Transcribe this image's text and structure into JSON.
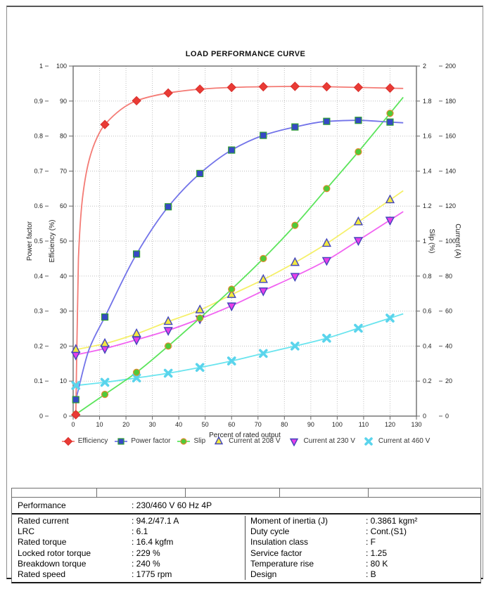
{
  "chart_data": {
    "type": "line",
    "title": "LOAD PERFORMANCE CURVE",
    "grid": true,
    "legend_position": "bottom",
    "curve_end_x": 125,
    "x_axis": {
      "title": "Percent of rated output",
      "min": 0,
      "max": 130,
      "step": 10,
      "ticks": [
        "0",
        "10",
        "20",
        "30",
        "40",
        "50",
        "60",
        "70",
        "80",
        "90",
        "100",
        "110",
        "120",
        "130"
      ]
    },
    "axes": {
      "power_factor": {
        "title": "Power factor",
        "min": 0,
        "max": 1,
        "step": 0.1,
        "side": "left-outer",
        "ticks": [
          "0",
          "0.1",
          "0.2",
          "0.3",
          "0.4",
          "0.5",
          "0.6",
          "0.7",
          "0.8",
          "0.9",
          "1"
        ]
      },
      "efficiency": {
        "title": "Efficiency (%)",
        "min": 0,
        "max": 100,
        "step": 10,
        "side": "left-inner",
        "ticks": [
          "0",
          "10",
          "20",
          "30",
          "40",
          "50",
          "60",
          "70",
          "80",
          "90",
          "100"
        ]
      },
      "slip": {
        "title": "Slip (%)",
        "min": 0,
        "max": 2,
        "step": 0.2,
        "side": "right-inner",
        "ticks": [
          "0",
          "0.2",
          "0.4",
          "0.6",
          "0.8",
          "1",
          "1.2",
          "1.4",
          "1.6",
          "1.8",
          "2"
        ]
      },
      "current": {
        "title": "Current (A)",
        "min": 0,
        "max": 200,
        "step": 20,
        "side": "right-outer",
        "ticks": [
          "0",
          "20",
          "40",
          "60",
          "80",
          "100",
          "120",
          "140",
          "160",
          "180",
          "200"
        ]
      }
    },
    "x": [
      1,
      12,
      24,
      36,
      48,
      60,
      72,
      84,
      96,
      108,
      120
    ],
    "series": [
      {
        "name": "Efficiency",
        "axis": "efficiency",
        "marker": "diamond",
        "line_color": "#f47b75",
        "marker_fill": "#e93b35",
        "marker_stroke": "#d92f2c",
        "legend_line": true,
        "values": [
          0.4,
          83.3,
          90.1,
          92.3,
          93.4,
          93.9,
          94.1,
          94.2,
          94.1,
          93.9,
          93.7
        ],
        "curve_hints": [
          [
            2,
            45
          ],
          [
            3.5,
            62
          ],
          [
            6,
            73
          ],
          [
            9,
            79.5
          ]
        ]
      },
      {
        "name": "Power factor",
        "axis": "power_factor",
        "marker": "square",
        "line_color": "#7273e9",
        "marker_fill": "#3649c6",
        "marker_stroke": "#2f9e33",
        "legend_line": true,
        "values": [
          0.047,
          0.283,
          0.463,
          0.598,
          0.693,
          0.76,
          0.802,
          0.826,
          0.842,
          0.845,
          0.84
        ],
        "curve_hints": [
          [
            6,
            0.19
          ]
        ]
      },
      {
        "name": "Slip",
        "axis": "slip",
        "marker": "circle",
        "line_color": "#5be45b",
        "marker_fill": "#4fca39",
        "marker_stroke": "#e2882c",
        "legend_line": true,
        "values": [
          0.01,
          0.124,
          0.25,
          0.4,
          0.56,
          0.725,
          0.9,
          1.09,
          1.3,
          1.51,
          1.73
        ]
      },
      {
        "name": "Current at 208 V",
        "axis": "current",
        "marker": "triangle-up",
        "line_color": "#f5f069",
        "marker_fill": "#f2e93e",
        "marker_stroke": "#4345bc",
        "legend_line": false,
        "values": [
          38,
          41.4,
          47,
          54,
          60.6,
          69.4,
          78,
          87.7,
          98.6,
          110.9,
          123.5
        ]
      },
      {
        "name": "Current at 230 V",
        "axis": "current",
        "marker": "triangle-down",
        "line_color": "#f163f1",
        "marker_fill": "#e93ee9",
        "marker_stroke": "#4345bc",
        "legend_line": false,
        "values": [
          35,
          38.6,
          43.6,
          49,
          55.6,
          63,
          71.6,
          79.9,
          89,
          100.4,
          112
        ]
      },
      {
        "name": "Current at 460 V",
        "axis": "current",
        "marker": "cross",
        "line_color": "#69e4ee",
        "marker_fill": "#5ad4ec",
        "marker_stroke": "#5ad4ec",
        "legend_line": false,
        "values": [
          17.5,
          19.3,
          21.8,
          24.5,
          27.8,
          31.5,
          35.8,
          40,
          44.5,
          50.2,
          56
        ]
      }
    ]
  },
  "table": {
    "performance": {
      "label": "Performance",
      "value": ": 230/460 V 60 Hz 4P"
    },
    "left_rows": [
      {
        "label": "Rated current",
        "value": ": 94.2/47.1 A"
      },
      {
        "label": "LRC",
        "value": ": 6.1"
      },
      {
        "label": "Rated torque",
        "value": ": 16.4 kgfm"
      },
      {
        "label": "Locked rotor torque",
        "value": ": 229 %"
      },
      {
        "label": "Breakdown torque",
        "value": ": 240 %"
      },
      {
        "label": "Rated speed",
        "value": ": 1775 rpm"
      }
    ],
    "right_rows": [
      {
        "label": "Moment of inertia (J)",
        "value": ": 0.3861 kgm²"
      },
      {
        "label": "Duty cycle",
        "value": ": Cont.(S1)"
      },
      {
        "label": "Insulation class",
        "value": ": F"
      },
      {
        "label": "Service factor",
        "value": ": 1.25"
      },
      {
        "label": "Temperature rise",
        "value": ": 80 K"
      },
      {
        "label": "Design",
        "value": ": B"
      }
    ]
  }
}
